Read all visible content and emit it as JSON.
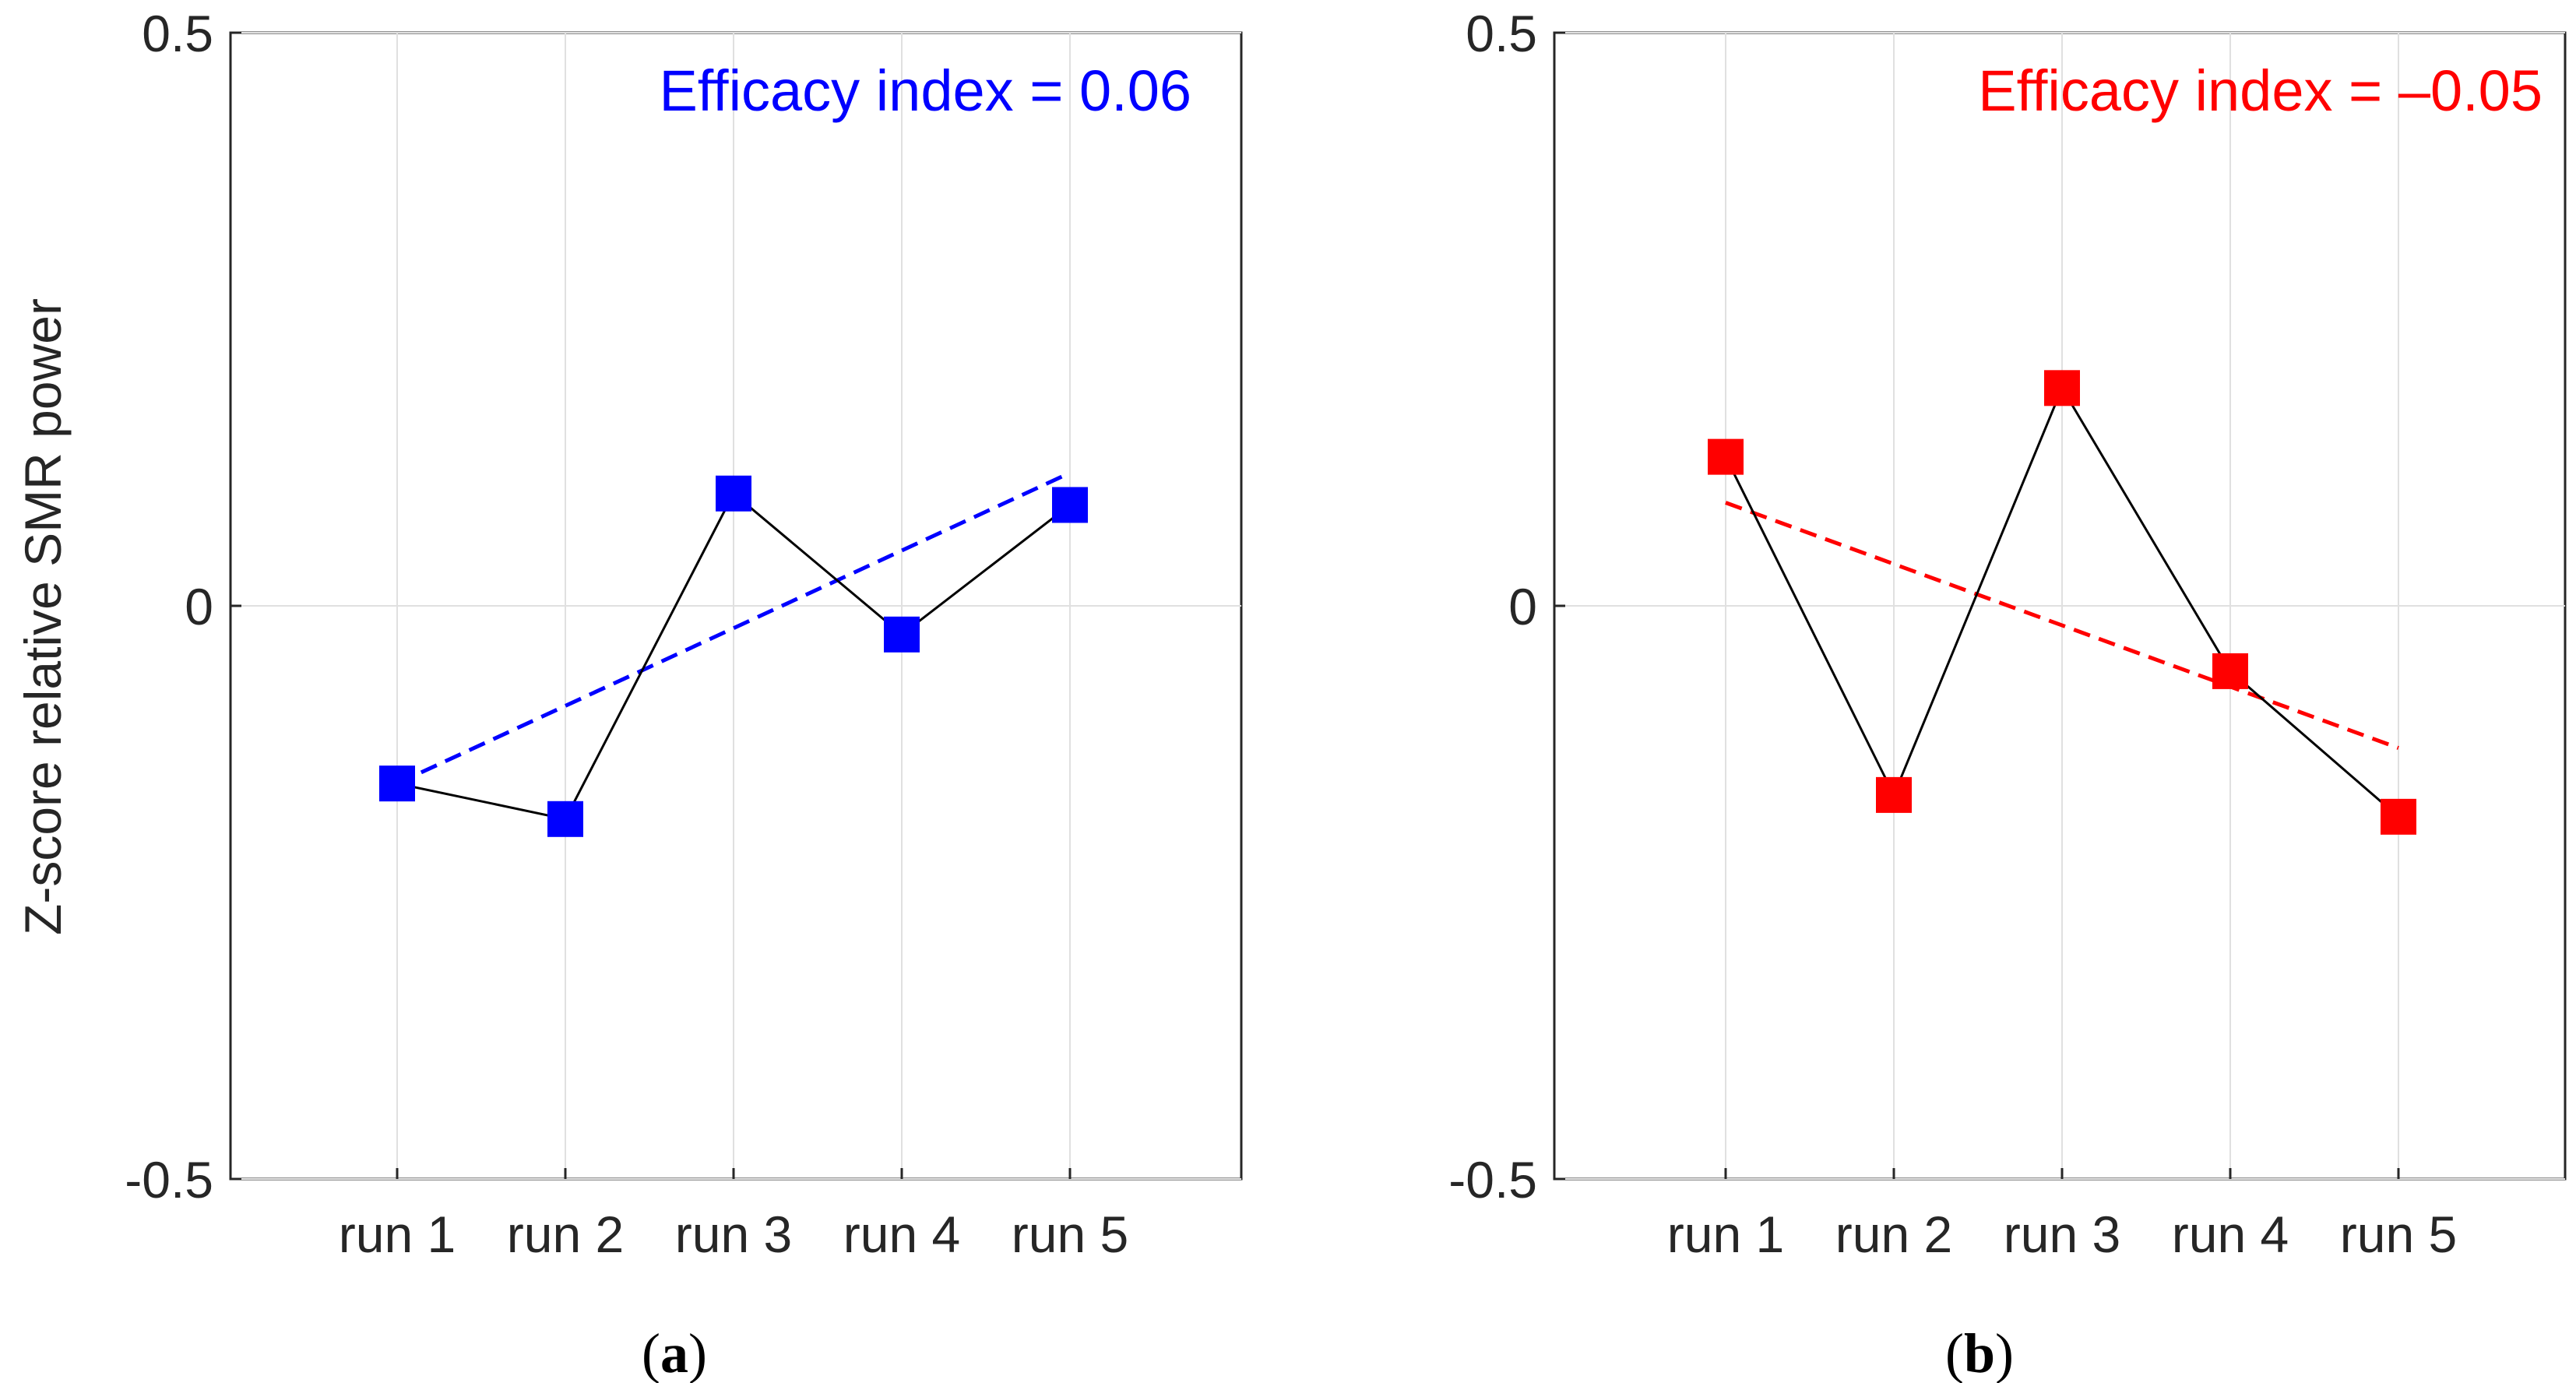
{
  "y_axis_label": "Z-score relative SMR power",
  "colors": {
    "axes": "#262626",
    "grid": "#e0e0e0",
    "connector": "#000000"
  },
  "chart_data": [
    {
      "type": "line",
      "panel_label": "a",
      "annotation": "Efficacy index = 0.06",
      "color": "#0000ff",
      "categories": [
        "run 1",
        "run 2",
        "run 3",
        "run 4",
        "run 5"
      ],
      "values": [
        -0.155,
        -0.186,
        0.098,
        -0.025,
        0.088
      ],
      "trend_line": {
        "start": -0.155,
        "end": 0.116,
        "style": "dashed"
      },
      "yticks": [
        "0.5",
        "0",
        "-0.5"
      ],
      "ylim": [
        -0.5,
        0.5
      ],
      "grid": true,
      "xlabel": "",
      "ylabel": "Z-score relative SMR power"
    },
    {
      "type": "line",
      "panel_label": "b",
      "annotation": "Efficacy index = –0.05",
      "color": "#ff0000",
      "categories": [
        "run 1",
        "run 2",
        "run 3",
        "run 4",
        "run 5"
      ],
      "values": [
        0.13,
        -0.165,
        0.19,
        -0.057,
        -0.184
      ],
      "trend_line": {
        "start": 0.09,
        "end": -0.124,
        "style": "dashed"
      },
      "yticks": [
        "0.5",
        "0",
        "-0.5"
      ],
      "ylim": [
        -0.5,
        0.5
      ],
      "grid": true,
      "xlabel": "",
      "ylabel": ""
    }
  ]
}
